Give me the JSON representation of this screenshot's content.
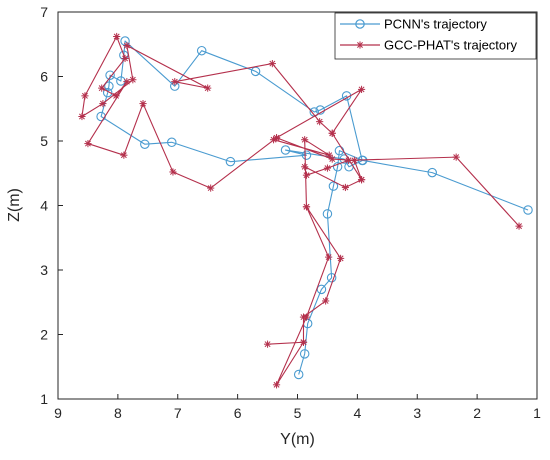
{
  "chart_data": {
    "type": "line",
    "xlabel": "Y(m)",
    "ylabel": "Z(m)",
    "x_reversed": true,
    "xlim": [
      9,
      1
    ],
    "ylim": [
      1,
      7
    ],
    "xticks": [
      9,
      8,
      7,
      6,
      5,
      4,
      3,
      2,
      1
    ],
    "yticks": [
      1,
      2,
      3,
      4,
      5,
      6,
      7
    ],
    "grid": false,
    "legend_position": "top-right",
    "series": [
      {
        "name": "PCNN's trajectory",
        "color": "#4a9bd0",
        "marker": "circle",
        "points": [
          [
            4.98,
            1.38
          ],
          [
            4.88,
            1.7
          ],
          [
            4.83,
            2.17
          ],
          [
            4.6,
            2.7
          ],
          [
            4.43,
            2.88
          ],
          [
            4.5,
            3.87
          ],
          [
            4.4,
            4.3
          ],
          [
            4.33,
            4.6
          ],
          [
            4.3,
            4.85
          ],
          [
            3.91,
            4.7
          ],
          [
            4.14,
            4.6
          ],
          [
            4.22,
            4.72
          ],
          [
            5.2,
            4.86
          ],
          [
            4.85,
            4.78
          ],
          [
            6.12,
            4.68
          ],
          [
            7.1,
            4.98
          ],
          [
            7.55,
            4.95
          ],
          [
            8.28,
            5.38
          ],
          [
            8.17,
            5.75
          ],
          [
            8.15,
            5.85
          ],
          [
            8.13,
            6.02
          ],
          [
            7.95,
            5.93
          ],
          [
            7.9,
            6.33
          ],
          [
            7.88,
            6.55
          ],
          [
            7.05,
            5.85
          ],
          [
            6.6,
            6.4
          ],
          [
            5.7,
            6.08
          ],
          [
            4.72,
            5.45
          ],
          [
            4.62,
            5.48
          ],
          [
            4.18,
            5.7
          ],
          [
            3.92,
            4.7
          ],
          [
            2.75,
            4.51
          ],
          [
            1.15,
            3.93
          ]
        ]
      },
      {
        "name": "GCC-PHAT's trajectory",
        "color": "#b4304c",
        "marker": "star",
        "points": [
          [
            1.3,
            3.68
          ],
          [
            2.35,
            4.75
          ],
          [
            4.15,
            4.7
          ],
          [
            4.5,
            4.58
          ],
          [
            4.85,
            4.47
          ],
          [
            4.88,
            4.6
          ],
          [
            4.2,
            4.28
          ],
          [
            3.93,
            4.4
          ],
          [
            4.05,
            4.7
          ],
          [
            4.42,
            4.72
          ],
          [
            5.35,
            5.05
          ],
          [
            5.4,
            5.02
          ],
          [
            4.47,
            4.78
          ],
          [
            4.88,
            5.02
          ],
          [
            4.85,
            3.98
          ],
          [
            4.28,
            3.18
          ],
          [
            4.53,
            2.52
          ],
          [
            4.9,
            2.27
          ],
          [
            4.9,
            1.88
          ],
          [
            5.5,
            1.85
          ],
          [
            4.9,
            1.88
          ],
          [
            5.35,
            1.22
          ],
          [
            4.85,
            2.27
          ],
          [
            4.48,
            3.2
          ],
          [
            4.85,
            3.98
          ]
        ]
      },
      {
        "name": "",
        "color": "#b4304c",
        "marker": "star",
        "points": [
          [
            4.42,
            5.12
          ],
          [
            4.63,
            5.3
          ],
          [
            5.42,
            6.2
          ],
          [
            7.05,
            5.92
          ],
          [
            6.5,
            5.82
          ],
          [
            7.85,
            6.48
          ],
          [
            7.75,
            5.95
          ],
          [
            8.25,
            5.58
          ],
          [
            8.6,
            5.38
          ],
          [
            8.55,
            5.7
          ],
          [
            8.02,
            6.62
          ],
          [
            7.88,
            6.28
          ],
          [
            8.27,
            5.82
          ],
          [
            8.03,
            5.7
          ],
          [
            7.85,
            5.92
          ],
          [
            8.5,
            4.96
          ],
          [
            7.9,
            4.78
          ],
          [
            7.58,
            5.58
          ],
          [
            7.08,
            4.52
          ],
          [
            6.45,
            4.27
          ],
          [
            5.35,
            5.05
          ],
          [
            3.93,
            5.8
          ],
          [
            4.42,
            5.12
          ],
          [
            3.93,
            4.4
          ]
        ]
      }
    ]
  }
}
